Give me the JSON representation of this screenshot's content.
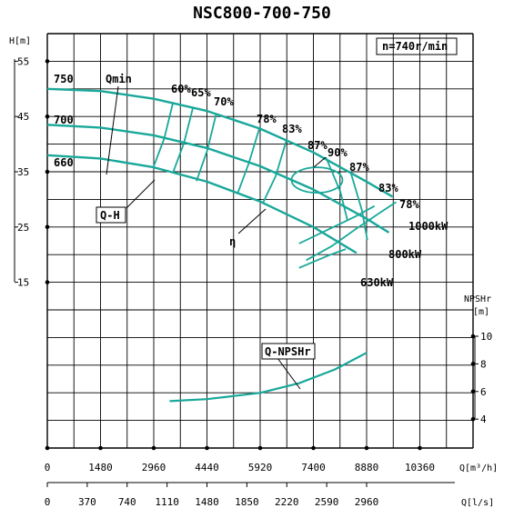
{
  "chart_data": {
    "type": "line",
    "title": "NSC800-700-750",
    "speed_label": "n=740r/min",
    "y_left": {
      "label": "H[m]",
      "ticks": [
        "55",
        "45",
        "35",
        "25",
        "15"
      ],
      "range": [
        15,
        55
      ]
    },
    "y_right": {
      "label_line1": "NPSHr",
      "label_line2": "[m]",
      "ticks": [
        "10",
        "8",
        "6",
        "4"
      ],
      "range": [
        4,
        10
      ]
    },
    "x_primary": {
      "unit_label": "Q[m³/h]",
      "ticks": [
        "0",
        "1480",
        "2960",
        "4440",
        "5920",
        "7400",
        "8880",
        "10360"
      ]
    },
    "x_secondary": {
      "unit_label": "Q[l/s]",
      "ticks": [
        "0",
        "370",
        "740",
        "1110",
        "1480",
        "1850",
        "2220",
        "2590",
        "2960"
      ]
    },
    "accent_color": "#19a89a",
    "head_curves": [
      {
        "diameter": "750",
        "x": [
          0,
          1480,
          2960,
          4440,
          5920,
          7400,
          8880,
          9600
        ],
        "y": [
          50.0,
          49.6,
          48.2,
          46.0,
          42.8,
          38.5,
          33.2,
          30.5
        ]
      },
      {
        "diameter": "700",
        "x": [
          0,
          1480,
          2960,
          4440,
          5920,
          7400,
          8880,
          9500
        ],
        "y": [
          43.5,
          43.0,
          41.6,
          39.3,
          36.0,
          31.8,
          26.5,
          24.0
        ]
      },
      {
        "diameter": "660",
        "x": [
          0,
          1480,
          2960,
          4440,
          5920,
          7400,
          8600
        ],
        "y": [
          38.0,
          37.4,
          35.8,
          33.2,
          29.6,
          25.0,
          20.3
        ]
      }
    ],
    "efficiency_labels": [
      "60%",
      "65%",
      "70%",
      "78%",
      "83%",
      "87%",
      "90%",
      "87%",
      "83%",
      "78%"
    ],
    "power_labels": [
      "1000kW",
      "800kW",
      "630kW"
    ],
    "annotations": {
      "qmin": "Qmin",
      "qh": "Q-H",
      "eta": "η",
      "npsh": "Q-NPSHr"
    },
    "npshr_curve": {
      "x": [
        3400,
        4440,
        5920,
        7000,
        8000,
        8880
      ],
      "y": [
        5.3,
        5.45,
        5.9,
        6.6,
        7.6,
        8.8
      ]
    }
  }
}
